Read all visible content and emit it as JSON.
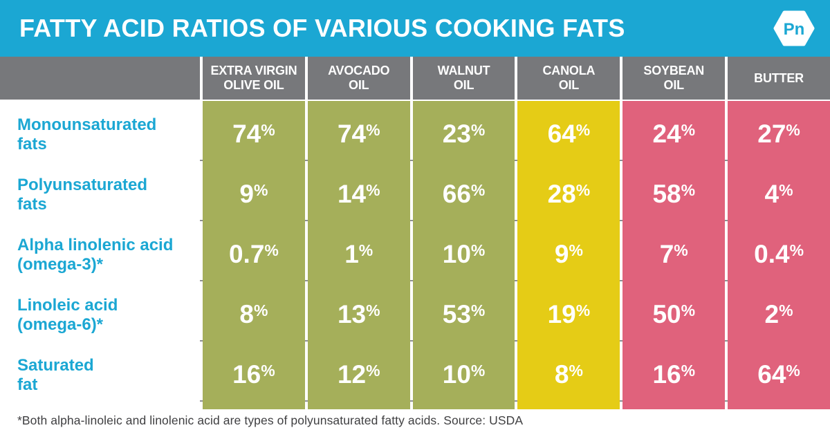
{
  "title_bar": {
    "title": "FATTY ACID RATIOS OF VARIOUS COOKING FATS",
    "logo_text": "Pn"
  },
  "colors": {
    "accent_cyan": "#1BA7D3",
    "header_gray": "#77787B",
    "olive_green": "#A5AF5A",
    "canola_yellow": "#E5CC16",
    "soy_pink": "#E0627C",
    "row_divider_gray": "#8E9092",
    "footnote_text": "#3F3F41"
  },
  "chart_data": {
    "type": "table",
    "title": "FATTY ACID RATIOS OF VARIOUS COOKING FATS",
    "columns": [
      {
        "label": "EXTRA VIRGIN\nOLIVE OIL",
        "color": "#A5AF5A"
      },
      {
        "label": "AVOCADO\nOIL",
        "color": "#A5AF5A"
      },
      {
        "label": "WALNUT\nOIL",
        "color": "#A5AF5A"
      },
      {
        "label": "CANOLA\nOIL",
        "color": "#E5CC16"
      },
      {
        "label": "SOYBEAN\nOIL",
        "color": "#E0627C"
      },
      {
        "label": "BUTTER",
        "color": "#E0627C"
      }
    ],
    "rows": [
      {
        "label": "Monounsaturated\nfats",
        "values": [
          "74%",
          "74%",
          "23%",
          "64%",
          "24%",
          "27%"
        ]
      },
      {
        "label": "Polyunsaturated\nfats",
        "values": [
          "9%",
          "14%",
          "66%",
          "28%",
          "58%",
          "4%"
        ]
      },
      {
        "label": "Alpha linolenic acid\n(omega-3)*",
        "values": [
          "0.7%",
          "1%",
          "10%",
          "9%",
          "7%",
          "0.4%"
        ]
      },
      {
        "label": "Linoleic acid\n(omega-6)*",
        "values": [
          "8%",
          "13%",
          "53%",
          "19%",
          "50%",
          "2%"
        ]
      },
      {
        "label": "Saturated\nfat",
        "values": [
          "16%",
          "12%",
          "10%",
          "8%",
          "16%",
          "64%"
        ]
      }
    ],
    "footnote": "*Both alpha-linoleic and linolenic acid are types of polyunsaturated fatty acids. Source: USDA"
  }
}
